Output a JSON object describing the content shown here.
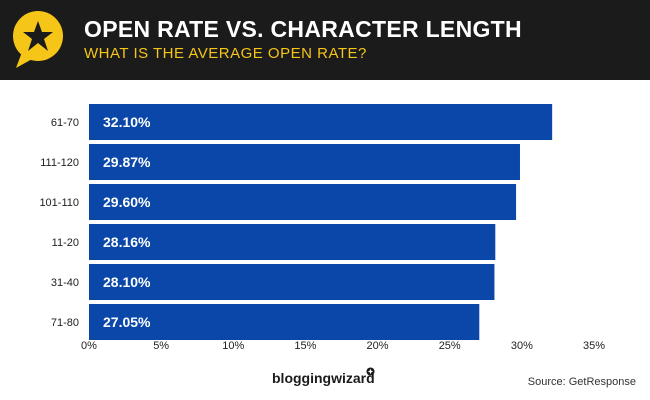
{
  "header": {
    "title": "OPEN RATE VS. CHARACTER LENGTH",
    "subtitle": "WHAT IS THE AVERAGE OPEN RATE?",
    "badge_icon": "star-speech-bubble-icon"
  },
  "footer": {
    "brand": "bloggingwizard",
    "source": "Source: GetResponse"
  },
  "colors": {
    "header_bg": "#1b1b1b",
    "accent_yellow": "#f5c518",
    "bar": "#0a47a8",
    "bar_text": "#ffffff"
  },
  "chart_data": {
    "type": "bar",
    "orientation": "horizontal",
    "categories": [
      "61-70",
      "111-120",
      "101-110",
      "11-20",
      "31-40",
      "71-80"
    ],
    "values": [
      32.1,
      29.87,
      29.6,
      28.16,
      28.1,
      27.05
    ],
    "data_labels": [
      "32.10%",
      "29.87%",
      "29.60%",
      "28.16%",
      "28.10%",
      "27.05%"
    ],
    "xlim": [
      0,
      35
    ],
    "x_ticks": [
      0,
      5,
      10,
      15,
      20,
      25,
      30,
      35
    ],
    "x_tick_labels": [
      "0%",
      "5%",
      "10%",
      "15%",
      "20%",
      "25%",
      "30%",
      "35%"
    ],
    "xlabel": "",
    "ylabel": "",
    "grid": false,
    "legend": "none"
  }
}
